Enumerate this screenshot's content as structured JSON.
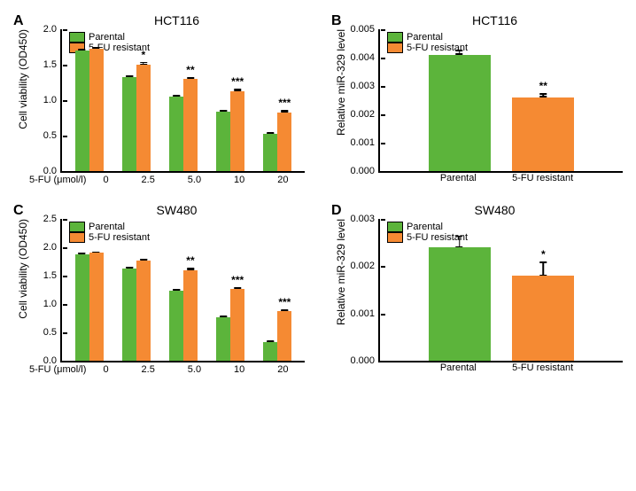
{
  "colors": {
    "parental": "#5cb43b",
    "resistant": "#f58a33",
    "axis": "#000000",
    "background": "#ffffff"
  },
  "legend": {
    "parental": "Parental",
    "resistant": "5-FU resistant"
  },
  "panelA": {
    "label": "A",
    "title": "HCT116",
    "ylabel": "Cell viability (OD450)",
    "xlabel": "5-FU (μmol/l)",
    "ymax": 2.0,
    "yticks": [
      0.0,
      0.5,
      1.0,
      1.5,
      2.0
    ],
    "categories": [
      "0",
      "2.5",
      "5.0",
      "10",
      "20"
    ],
    "parental": [
      1.7,
      1.33,
      1.05,
      0.84,
      0.52
    ],
    "resistant": [
      1.73,
      1.5,
      1.3,
      1.12,
      0.83
    ],
    "err_p": [
      0.02,
      0.02,
      0.02,
      0.02,
      0.03
    ],
    "err_r": [
      0.02,
      0.04,
      0.03,
      0.04,
      0.03
    ],
    "sig": [
      "",
      "*",
      "**",
      "***",
      "***"
    ]
  },
  "panelB": {
    "label": "B",
    "title": "HCT116",
    "ylabel": "Relative miR-329 level",
    "ymax": 0.005,
    "yticks": [
      0.0,
      0.001,
      0.002,
      0.003,
      0.004,
      0.005
    ],
    "categories": [
      "Parental",
      "5-FU resistant"
    ],
    "values": [
      0.0041,
      0.0026
    ],
    "err": [
      0.00018,
      0.00015
    ],
    "colors": [
      "#5cb43b",
      "#f58a33"
    ],
    "sig": [
      "",
      "**"
    ]
  },
  "panelC": {
    "label": "C",
    "title": "SW480",
    "ylabel": "Cell viability (OD450)",
    "xlabel": "5-FU (μmol/l)",
    "ymax": 2.5,
    "yticks": [
      0.0,
      0.5,
      1.0,
      1.5,
      2.0,
      2.5
    ],
    "categories": [
      "0",
      "2.5",
      "5.0",
      "10",
      "20"
    ],
    "parental": [
      1.88,
      1.63,
      1.24,
      0.76,
      0.33
    ],
    "resistant": [
      1.9,
      1.77,
      1.6,
      1.26,
      0.87
    ],
    "err_p": [
      0.03,
      0.03,
      0.02,
      0.03,
      0.02
    ],
    "err_r": [
      0.03,
      0.03,
      0.04,
      0.04,
      0.03
    ],
    "sig": [
      "",
      "",
      "**",
      "***",
      "***"
    ]
  },
  "panelD": {
    "label": "D",
    "title": "SW480",
    "ylabel": "Relative miR-329 level",
    "ymax": 0.003,
    "yticks": [
      0.0,
      0.001,
      0.002,
      0.003
    ],
    "categories": [
      "Parental",
      "5-FU resistant"
    ],
    "values": [
      0.0024,
      0.0018
    ],
    "err": [
      0.00025,
      0.0003
    ],
    "colors": [
      "#5cb43b",
      "#f58a33"
    ],
    "sig": [
      "",
      "*"
    ]
  }
}
